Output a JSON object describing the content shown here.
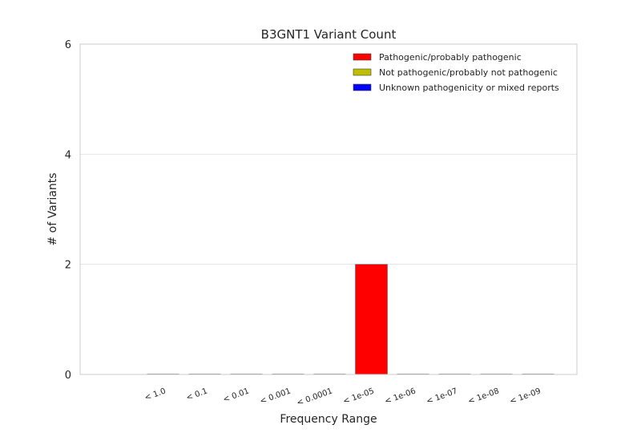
{
  "chart_data": {
    "type": "bar",
    "title": "B3GNT1 Variant Count",
    "xlabel": "Frequency Range",
    "ylabel": "# of Variants",
    "ylim": [
      0,
      6
    ],
    "yticks": [
      "0",
      "2",
      "4",
      "6"
    ],
    "categories": [
      "< 1.0",
      "< 0.1",
      "< 0.01",
      "< 0.001",
      "< 0.0001",
      "< 1e-05",
      "< 1e-06",
      "< 1e-07",
      "< 1e-08",
      "< 1e-09"
    ],
    "series": [
      {
        "name": "Pathogenic/probably pathogenic",
        "color": "#ff0000",
        "values": [
          0,
          0,
          0,
          0,
          0,
          2,
          0,
          0,
          0,
          0
        ]
      },
      {
        "name": "Not pathogenic/probably not pathogenic",
        "color": "#bfbf00",
        "values": [
          0,
          0,
          0,
          0,
          0,
          0,
          0,
          0,
          0,
          0
        ]
      },
      {
        "name": "Unknown pathogenicity or mixed reports",
        "color": "#0000ff",
        "values": [
          0,
          0,
          0,
          0,
          0,
          0,
          0,
          0,
          0,
          0
        ]
      }
    ],
    "grid": true,
    "legend_position": "top-right"
  }
}
